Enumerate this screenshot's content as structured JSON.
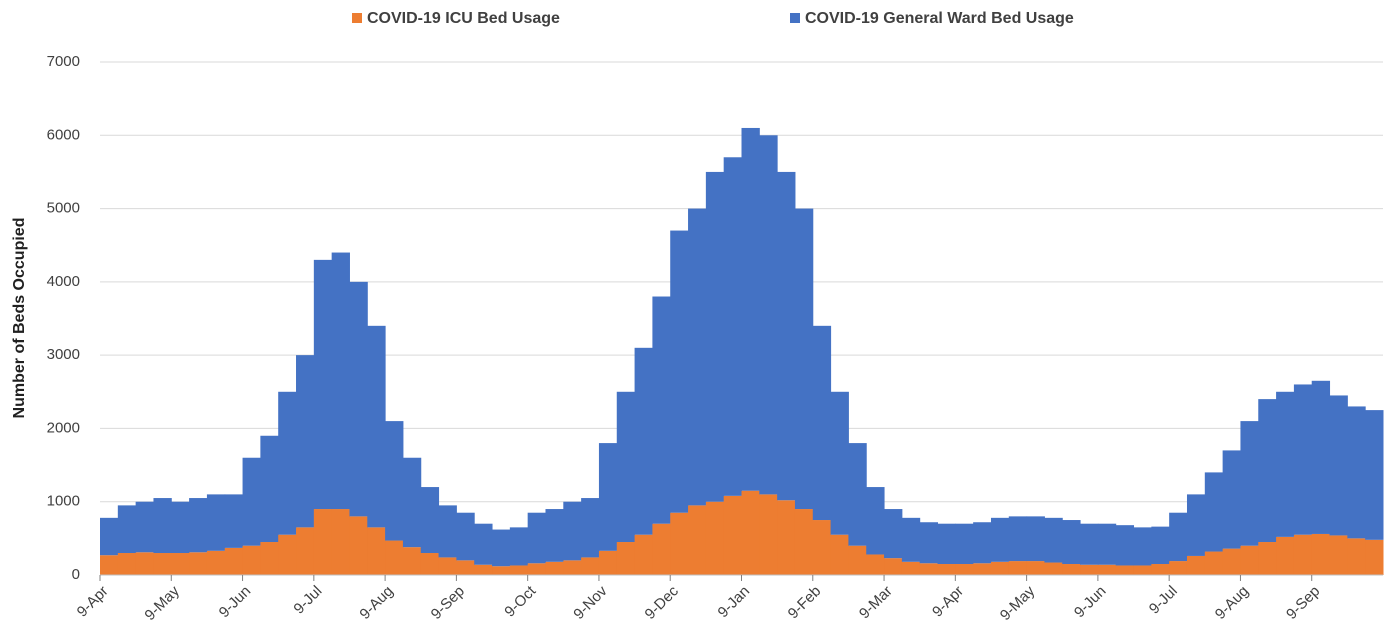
{
  "chart_data": {
    "type": "stacked_bar",
    "y_label": "Number of Beds Occupied",
    "categories": [
      "9-Apr",
      null,
      null,
      null,
      "9-May",
      null,
      null,
      null,
      "9-Jun",
      null,
      null,
      null,
      "9-Jul",
      null,
      null,
      null,
      "9-Aug",
      null,
      null,
      null,
      "9-Sep",
      null,
      null,
      null,
      "9-Oct",
      null,
      null,
      null,
      "9-Nov",
      null,
      null,
      null,
      "9-Dec",
      null,
      null,
      null,
      "9-Jan",
      null,
      null,
      null,
      "9-Feb",
      null,
      null,
      null,
      "9-Mar",
      null,
      null,
      null,
      "9-Apr",
      null,
      null,
      null,
      "9-May",
      null,
      null,
      null,
      "9-Jun",
      null,
      null,
      null,
      "9-Jul",
      null,
      null,
      null,
      "9-Aug",
      null,
      null,
      null,
      "9-Sep",
      null,
      null,
      null
    ],
    "series": [
      {
        "name": "COVID-19 ICU Bed Usage",
        "color": "#ed7d31",
        "values": [
          270,
          300,
          310,
          300,
          300,
          310,
          330,
          370,
          400,
          450,
          550,
          650,
          900,
          900,
          800,
          650,
          470,
          380,
          300,
          240,
          200,
          140,
          120,
          130,
          160,
          180,
          200,
          240,
          330,
          450,
          550,
          700,
          850,
          950,
          1000,
          1080,
          1150,
          1100,
          1020,
          900,
          750,
          550,
          400,
          280,
          230,
          180,
          160,
          150,
          150,
          160,
          180,
          190,
          190,
          170,
          150,
          140,
          140,
          130,
          130,
          150,
          190,
          260,
          320,
          360,
          400,
          450,
          520,
          550,
          560,
          540,
          500,
          480
        ]
      },
      {
        "name": "COVID-19 General Ward Bed Usage",
        "color": "#4472c4",
        "values": [
          510,
          650,
          690,
          750,
          700,
          740,
          770,
          730,
          1200,
          1450,
          1950,
          2350,
          3400,
          3500,
          3200,
          2750,
          1630,
          1220,
          900,
          710,
          650,
          560,
          500,
          520,
          690,
          720,
          800,
          810,
          1470,
          2050,
          2550,
          3100,
          3850,
          4050,
          4500,
          4620,
          4950,
          4900,
          4480,
          4100,
          2650,
          1950,
          1400,
          920,
          670,
          600,
          560,
          550,
          550,
          560,
          600,
          610,
          610,
          610,
          600,
          560,
          560,
          550,
          520,
          510,
          660,
          840,
          1080,
          1340,
          1700,
          1950,
          1980,
          2050,
          2090,
          1910,
          1800,
          1770
        ]
      }
    ],
    "ylim": [
      0,
      7000
    ],
    "yticks": [
      0,
      1000,
      2000,
      3000,
      4000,
      5000,
      6000,
      7000
    ],
    "grid": true,
    "legend": "top"
  }
}
